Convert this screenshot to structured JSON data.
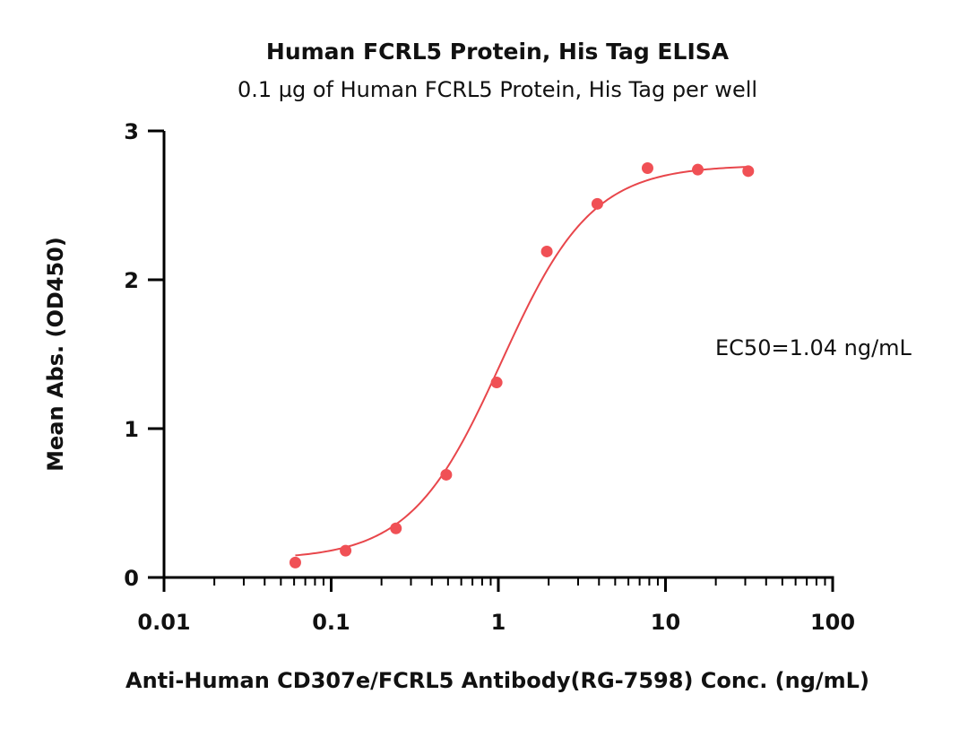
{
  "chart_data": {
    "type": "scatter",
    "title": "Human FCRL5 Protein, His Tag ELISA",
    "subtitle": "0.1 µg of Human FCRL5 Protein, His Tag per well",
    "xlabel": "Anti-Human CD307e/FCRL5 Antibody(RG-7598) Conc. (ng/mL)",
    "ylabel": "Mean Abs. (OD450)",
    "x_scale": "log",
    "xlim": [
      0.01,
      100
    ],
    "ylim": [
      0,
      3
    ],
    "x_ticks": [
      0.01,
      0.1,
      1,
      10,
      100
    ],
    "x_tick_labels": [
      "0.01",
      "0.1",
      "1",
      "10",
      "100"
    ],
    "y_ticks": [
      0,
      1,
      2,
      3
    ],
    "y_tick_labels": [
      "0",
      "1",
      "2",
      "3"
    ],
    "grid": false,
    "point_color": "#f05055",
    "curve_color": "#e8464b",
    "series": [
      {
        "x": [
          0.061,
          0.122,
          0.244,
          0.488,
          0.977,
          1.95,
          3.91,
          7.81,
          15.6,
          31.25
        ],
        "y": [
          0.1,
          0.18,
          0.33,
          0.69,
          1.31,
          2.19,
          2.51,
          2.75,
          2.74,
          2.73
        ]
      }
    ],
    "fit": {
      "model": "4PL",
      "bottom": 0.12,
      "top": 2.77,
      "ec50": 1.04,
      "hill": 1.6
    },
    "annotations": [
      {
        "text": "EC50=1.04 ng/mL"
      }
    ]
  }
}
